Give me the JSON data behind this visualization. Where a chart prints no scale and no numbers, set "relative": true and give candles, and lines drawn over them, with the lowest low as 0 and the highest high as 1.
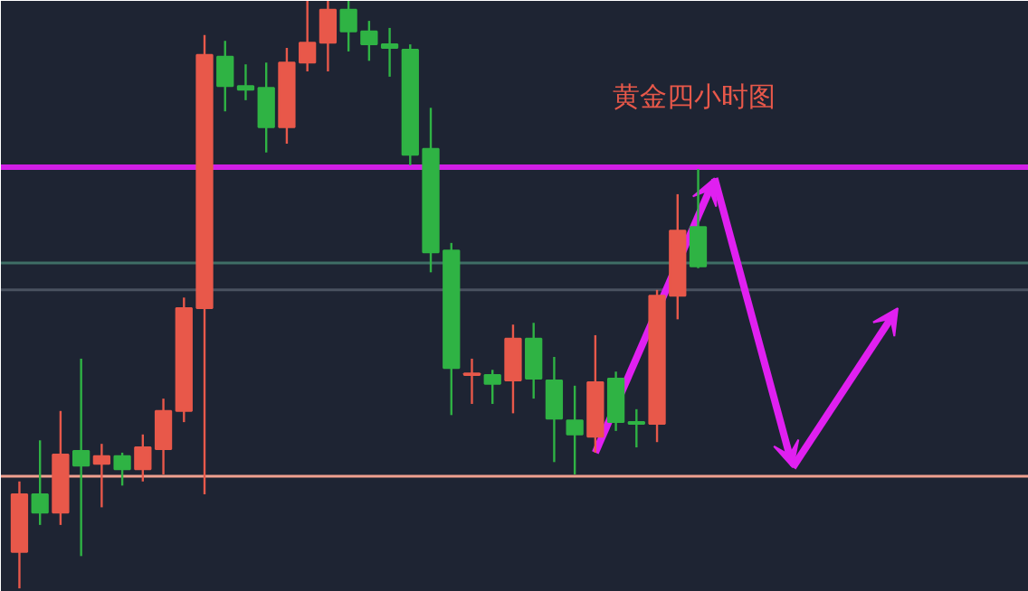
{
  "chart_data": {
    "type": "candlestick",
    "title": "黄金四小时图",
    "relative": true,
    "categories": [
      null,
      null,
      null,
      null,
      null,
      null,
      null,
      null,
      null,
      null,
      null,
      null,
      null,
      null,
      null,
      null,
      null,
      null,
      null,
      null,
      null,
      null,
      null,
      null,
      null,
      null,
      null,
      null,
      null,
      null,
      null,
      null,
      null,
      null
    ],
    "ohlc": [
      [
        0.062,
        0.182,
        0,
        0.16
      ],
      [
        0.16,
        0.252,
        0.108,
        0.129
      ],
      [
        0.129,
        0.302,
        0.108,
        0.228
      ],
      [
        0.234,
        0.391,
        0.055,
        0.209
      ],
      [
        0.212,
        0.246,
        0.138,
        0.225
      ],
      [
        0.225,
        0.231,
        0.175,
        0.203
      ],
      [
        0.203,
        0.262,
        0.182,
        0.24
      ],
      [
        0.237,
        0.323,
        0.194,
        0.302
      ],
      [
        0.302,
        0.495,
        0.283,
        0.477
      ],
      [
        0.477,
        0.942,
        0.16,
        0.908
      ],
      [
        0.905,
        0.932,
        0.812,
        0.855
      ],
      [
        0.855,
        0.892,
        0.831,
        0.849
      ],
      [
        0.852,
        0.895,
        0.742,
        0.785
      ],
      [
        0.785,
        0.92,
        0.757,
        0.895
      ],
      [
        0.895,
        1,
        0.88,
        0.929
      ],
      [
        0.929,
        1,
        0.88,
        0.985
      ],
      [
        0.985,
        1,
        0.914,
        0.948
      ],
      [
        0.948,
        0.966,
        0.898,
        0.926
      ],
      [
        0.926,
        0.954,
        0.871,
        0.92
      ],
      [
        0.917,
        0.926,
        0.72,
        0.738
      ],
      [
        0.748,
        0.818,
        0.538,
        0.572
      ],
      [
        0.575,
        0.588,
        0.295,
        0.375
      ],
      [
        0.363,
        0.391,
        0.314,
        0.366
      ],
      [
        0.363,
        0.372,
        0.314,
        0.348
      ],
      [
        0.354,
        0.449,
        0.298,
        0.425
      ],
      [
        0.425,
        0.452,
        0.323,
        0.357
      ],
      [
        0.354,
        0.394,
        0.215,
        0.289
      ],
      [
        0.286,
        0.345,
        0.194,
        0.262
      ],
      [
        0.258,
        0.431,
        0.231,
        0.351
      ],
      [
        0.357,
        0.369,
        0.268,
        0.283
      ],
      [
        0.283,
        0.305,
        0.24,
        0.28
      ],
      [
        0.28,
        0.508,
        0.249,
        0.498
      ],
      [
        0.498,
        0.671,
        0.458,
        0.609
      ],
      [
        0.615,
        0.714,
        0.545,
        0.548
      ]
    ],
    "colors": [
      "#e8584a",
      "#2fb344",
      "#e8584a",
      "#2fb344",
      "#e8584a",
      "#2fb344",
      "#e8584a",
      "#e8584a",
      "#e8584a",
      "#e8584a",
      "#2fb344",
      "#2fb344",
      "#2fb344",
      "#e8584a",
      "#e8584a",
      "#e8584a",
      "#2fb344",
      "#2fb344",
      "#2fb344",
      "#2fb344",
      "#2fb344",
      "#2fb344",
      "#e8584a",
      "#2fb344",
      "#e8584a",
      "#2fb344",
      "#2fb344",
      "#2fb344",
      "#e8584a",
      "#2fb344",
      "#2fb344",
      "#e8584a",
      "#e8584a",
      "#2fb344"
    ],
    "ref_lines": [
      {
        "axis": "y",
        "value": 0.717,
        "color": "#d21ee6"
      },
      {
        "axis": "y",
        "value": 0.191,
        "color": "#f0a090"
      },
      {
        "axis": "y",
        "value": 0.554,
        "color": "#3f6e66"
      },
      {
        "axis": "y",
        "value": 0.508,
        "color": "#4a5260"
      }
    ],
    "grid": false
  }
}
